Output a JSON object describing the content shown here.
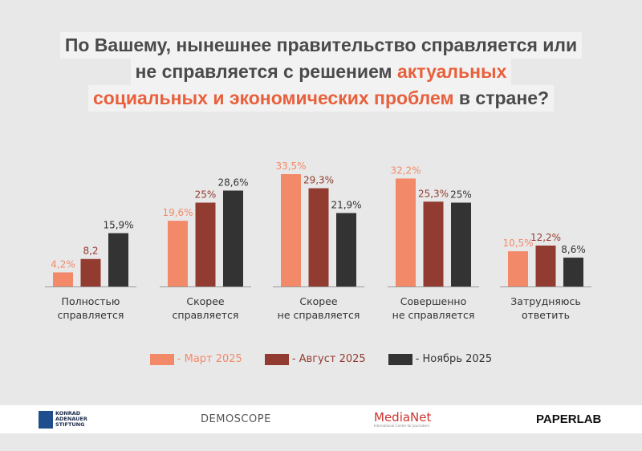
{
  "title": {
    "line1": "По Вашему, нынешнее правительство справляется или",
    "line2_plain": "не справляется с решением ",
    "line2_highlight": "актуальных",
    "line3_highlight": "социальных и экономических проблем",
    "line3_plain": " в стране?"
  },
  "colors": {
    "background": "#e8e8e8",
    "highlight": "#e8603c",
    "march": "#f28a6a",
    "august": "#923b31",
    "november": "#333333"
  },
  "chart_data": {
    "type": "bar",
    "categories": [
      "Полностью справляется",
      "Скорее справляется",
      "Скорее не справляется",
      "Совершенно не справляется",
      "Затрудняюсь ответить"
    ],
    "category_lines": [
      [
        "Полностью",
        "справляется"
      ],
      [
        "Скорее",
        "справляется"
      ],
      [
        "Скорее",
        "не справляется"
      ],
      [
        "Совершенно",
        "не справляется"
      ],
      [
        "Затрудняюсь",
        "ответить"
      ]
    ],
    "series": [
      {
        "name": "- Март 2025",
        "color": "#f28a6a",
        "values": [
          4.2,
          19.6,
          33.5,
          32.2,
          10.5
        ],
        "labels": [
          "4,2%",
          "19,6%",
          "33,5%",
          "32,2%",
          "10,5%"
        ]
      },
      {
        "name": "- Август 2025",
        "color": "#923b31",
        "values": [
          8.2,
          25,
          29.3,
          25.3,
          12.2
        ],
        "labels": [
          "8,2",
          "25%",
          "29,3%",
          "25,3%",
          "12,2%"
        ]
      },
      {
        "name": "- Ноябрь 2025",
        "color": "#333333",
        "values": [
          15.9,
          28.6,
          21.9,
          25,
          8.6
        ],
        "labels": [
          "15,9%",
          "28,6%",
          "21,9%",
          "25%",
          "8,6%"
        ]
      }
    ],
    "ylim": [
      0,
      35
    ],
    "grid": false,
    "legend": "bottom"
  },
  "footer": {
    "logos": [
      "KONRAD ADENAUER STIFTUNG",
      "DEMOSCOPE",
      "MediaNet",
      "PAPERLAB"
    ],
    "medianet_sub": "International Centre for Journalism"
  }
}
